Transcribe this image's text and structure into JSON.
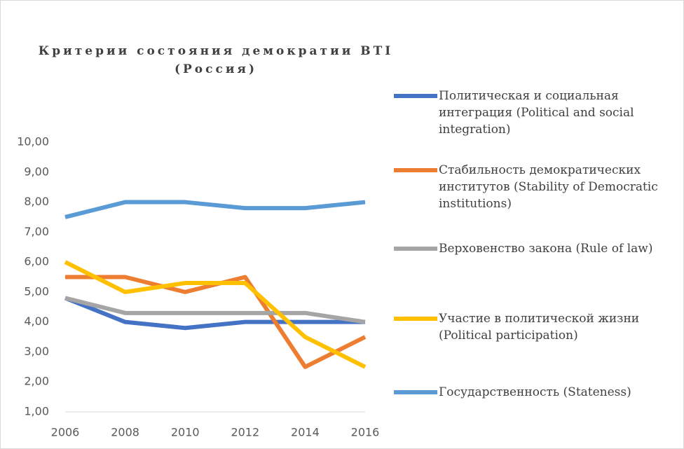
{
  "chart_data": {
    "type": "line",
    "title": "Критерии состояния демократии BTI (Россия)",
    "x": [
      2006,
      2008,
      2010,
      2012,
      2014,
      2016
    ],
    "xlim": [
      2006,
      2016
    ],
    "xticks": [
      2006,
      2008,
      2010,
      2012,
      2014,
      2016
    ],
    "ylim": [
      1,
      10
    ],
    "yticks": [
      {
        "value": 1,
        "label": "1,00"
      },
      {
        "value": 2,
        "label": "2,00"
      },
      {
        "value": 3,
        "label": "3,00"
      },
      {
        "value": 4,
        "label": "4,00"
      },
      {
        "value": 5,
        "label": "5,00"
      },
      {
        "value": 6,
        "label": "6,00"
      },
      {
        "value": 7,
        "label": "7,00"
      },
      {
        "value": 8,
        "label": "8,00"
      },
      {
        "value": 9,
        "label": "9,00"
      },
      {
        "value": 10,
        "label": "10,00"
      }
    ],
    "grid": false,
    "legend": "right",
    "series": [
      {
        "name": "Политическая и социальная интеграция (Political and social integration)",
        "color": "#4472c4",
        "values": [
          4.8,
          4.0,
          3.8,
          4.0,
          4.0,
          4.0
        ]
      },
      {
        "name": "Стабильность демократических институтов (Stability of Democratic institutions)",
        "color": "#ed7d31",
        "values": [
          5.5,
          5.5,
          5.0,
          5.5,
          2.5,
          3.5
        ]
      },
      {
        "name": "Верховенство закона (Rule of law)",
        "color": "#a5a5a5",
        "values": [
          4.8,
          4.3,
          4.3,
          4.3,
          4.3,
          4.0
        ]
      },
      {
        "name": "Участие в политической жизни (Political participation)",
        "color": "#ffc000",
        "values": [
          6.0,
          5.0,
          5.3,
          5.3,
          3.5,
          2.5
        ]
      },
      {
        "name": "Государственность (Stateness)",
        "color": "#5b9bd5",
        "values": [
          7.5,
          8.0,
          8.0,
          7.8,
          7.8,
          8.0
        ]
      }
    ]
  }
}
